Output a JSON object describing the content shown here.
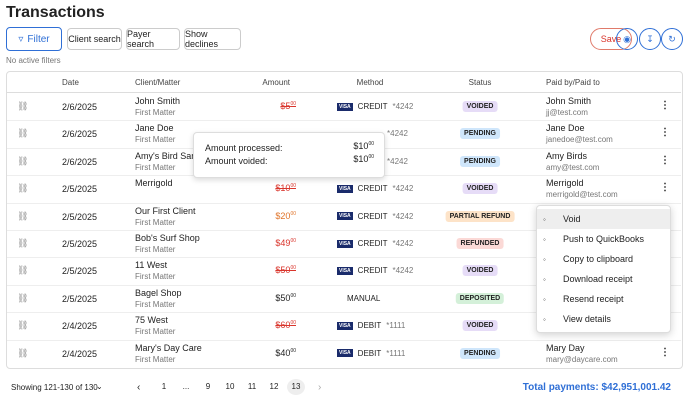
{
  "header": {
    "title": "Transactions"
  },
  "toolbar": {
    "filter": "Filter",
    "client_search": "Client search",
    "payer_search": "Payer search",
    "show_declines": "Show declines",
    "save": "Save"
  },
  "filters_note": "No active filters",
  "table": {
    "columns": [
      "Date",
      "Client/Matter",
      "Amount",
      "Method",
      "Status",
      "Paid by/Paid to"
    ],
    "rows": [
      {
        "date": "2/6/2025",
        "client": "John Smith",
        "matter": "First Matter",
        "amount": "$5",
        "cents": "00",
        "amount_color": "#d9342b",
        "strike": true,
        "card": "VISA",
        "method": "CREDIT",
        "last4": "*4242",
        "status": "VOIDED",
        "status_color": "#e6dcf7",
        "payer": "John Smith",
        "email": "jj@test.com"
      },
      {
        "date": "2/6/2025",
        "client": "Jane Doe",
        "matter": "First Matter",
        "last4": "*4242",
        "status": "PENDING",
        "status_color": "#cfe6fb",
        "payer": "Jane Doe",
        "email": "janedoe@test.com"
      },
      {
        "date": "2/6/2025",
        "client": "Amy's Bird Sanc",
        "matter": "First Matter",
        "last4": "*4242",
        "status": "PENDING",
        "status_color": "#cfe6fb",
        "payer": "Amy Birds",
        "email": "amy@test.com"
      },
      {
        "date": "2/5/2025",
        "client": "Merrigold",
        "amount": "$10",
        "cents": "00",
        "amount_color": "#d9342b",
        "strike": true,
        "card": "VISA",
        "method": "CREDIT",
        "last4": "*4242",
        "status": "VOIDED",
        "status_color": "#e6dcf7",
        "payer": "Merrigold",
        "email": "merrigold@test.com"
      },
      {
        "date": "2/5/2025",
        "client": "Our First Client",
        "matter": "First Matter",
        "amount": "$20",
        "cents": "00",
        "amount_color": "#e0742a",
        "strike": false,
        "card": "VISA",
        "method": "CREDIT",
        "last4": "*4242",
        "status": "PARTIAL REFUND",
        "status_color": "#fde3c8"
      },
      {
        "date": "2/5/2025",
        "client": "Bob's Surf Shop",
        "matter": "First Matter",
        "amount": "$49",
        "cents": "00",
        "amount_color": "#d9342b",
        "strike": false,
        "card": "VISA",
        "method": "CREDIT",
        "last4": "*4242",
        "status": "REFUNDED",
        "status_color": "#fbd9d6"
      },
      {
        "date": "2/5/2025",
        "client": "11 West",
        "matter": "First Matter",
        "amount": "$50",
        "cents": "00",
        "amount_color": "#d9342b",
        "strike": true,
        "card": "VISA",
        "method": "CREDIT",
        "last4": "*4242",
        "status": "VOIDED",
        "status_color": "#e6dcf7"
      },
      {
        "date": "2/5/2025",
        "client": "Bagel Shop",
        "matter": "First Matter",
        "amount": "$50",
        "cents": "00",
        "amount_color": "#222",
        "strike": false,
        "method": "MANUAL",
        "status": "DEPOSITED",
        "status_color": "#d4f0d9"
      },
      {
        "date": "2/4/2025",
        "client": "75 West",
        "matter": "First Matter",
        "amount": "$60",
        "cents": "00",
        "amount_color": "#d9342b",
        "strike": true,
        "card": "VISA",
        "method": "DEBIT",
        "last4": "*1111",
        "status": "VOIDED",
        "status_color": "#e6dcf7"
      },
      {
        "date": "2/4/2025",
        "client": "Mary's Day Care",
        "matter": "First Matter",
        "amount": "$40",
        "cents": "00",
        "amount_color": "#222",
        "strike": false,
        "card": "VISA",
        "method": "DEBIT",
        "last4": "*1111",
        "status": "PENDING",
        "status_color": "#cfe6fb",
        "payer": "Mary Day",
        "email": "mary@daycare.com"
      }
    ]
  },
  "tooltip": {
    "rows": [
      {
        "label": "Amount processed:",
        "amount": "$10",
        "cents": "00"
      },
      {
        "label": "Amount voided:",
        "amount": "$10",
        "cents": "00"
      }
    ]
  },
  "menu": {
    "items": [
      "Void",
      "Push to QuickBooks",
      "Copy to clipboard",
      "Download receipt",
      "Resend receipt",
      "View details"
    ]
  },
  "footer": {
    "showing": "Showing 121-130 of 130",
    "pages": [
      "1",
      "...",
      "9",
      "10",
      "11",
      "12",
      "13"
    ],
    "total": "Total payments: $42,951,001.42"
  }
}
